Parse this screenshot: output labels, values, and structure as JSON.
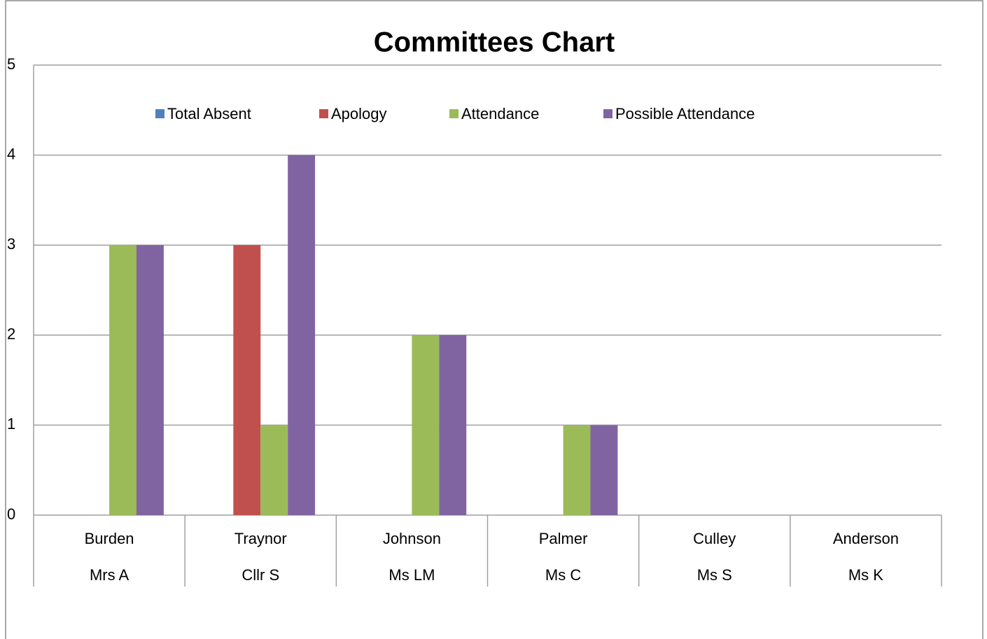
{
  "chart_data": {
    "type": "bar",
    "title": "Committees Chart",
    "categories": [
      [
        "Burden",
        "Mrs A"
      ],
      [
        "Traynor",
        "Cllr S"
      ],
      [
        "Johnson",
        "Ms LM"
      ],
      [
        "Palmer",
        "Ms C"
      ],
      [
        "Culley",
        "Ms S"
      ],
      [
        "Anderson",
        "Ms K"
      ]
    ],
    "series": [
      {
        "name": "Total Absent",
        "color": "#4f81bd",
        "values": [
          0,
          0,
          0,
          0,
          0,
          0
        ]
      },
      {
        "name": "Apology",
        "color": "#c0504d",
        "values": [
          0,
          3,
          0,
          0,
          0,
          0
        ]
      },
      {
        "name": "Attendance",
        "color": "#9bbb59",
        "values": [
          3,
          1,
          2,
          1,
          0,
          0
        ]
      },
      {
        "name": "Possible Attendance",
        "color": "#8064a2",
        "values": [
          3,
          4,
          2,
          1,
          0,
          0
        ]
      }
    ],
    "ylim": [
      0,
      5
    ],
    "yticks": [
      0,
      1,
      2,
      3,
      4,
      5
    ],
    "grid": true,
    "legend": "top"
  }
}
